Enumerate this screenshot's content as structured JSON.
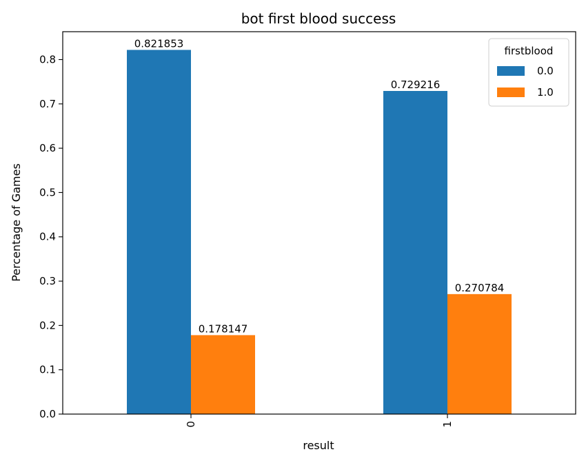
{
  "chart_data": {
    "type": "bar",
    "title": "bot first blood success",
    "xlabel": "result",
    "ylabel": "Percentage of Games",
    "categories": [
      "0",
      "1"
    ],
    "series": [
      {
        "name": "0.0",
        "values": [
          0.821853,
          0.729216
        ],
        "color": "#1f77b4"
      },
      {
        "name": "1.0",
        "values": [
          0.178147,
          0.270784
        ],
        "color": "#ff7f0e"
      }
    ],
    "data_labels": [
      [
        "0.821853",
        "0.729216"
      ],
      [
        "0.178147",
        "0.270784"
      ]
    ],
    "ylim": [
      0,
      0.862946
    ],
    "yticks": [
      0.0,
      0.1,
      0.2,
      0.3,
      0.4,
      0.5,
      0.6,
      0.7,
      0.8
    ],
    "ytick_labels": [
      "0.0",
      "0.1",
      "0.2",
      "0.3",
      "0.4",
      "0.5",
      "0.6",
      "0.7",
      "0.8"
    ],
    "legend_title": "firstblood",
    "legend_position": "top-right",
    "grid": false
  }
}
